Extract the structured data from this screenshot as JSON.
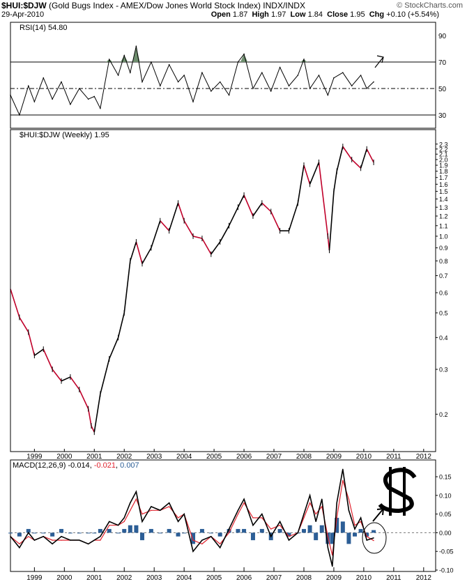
{
  "header": {
    "symbol": "$HUI:$DJW",
    "description": "(Gold Bugs Index - AMEX/Dow Jones World Stock Index) INDX/INDX",
    "date": "29-Apr-2010",
    "watermark": "© StockCharts.com",
    "open_label": "Open",
    "open": "1.87",
    "high_label": "High",
    "high": "1.97",
    "low_label": "Low",
    "low": "1.84",
    "close_label": "Close",
    "close": "1.95",
    "chg_label": "Chg",
    "chg": "+0.10 (+5.54%)"
  },
  "chart_data": [
    {
      "type": "line",
      "title": "RSI(14) 54.80",
      "ylim": [
        20,
        100
      ],
      "yticks": [
        "90",
        "70",
        "50",
        "30"
      ],
      "reference_lines": [
        70,
        50,
        30
      ],
      "x": [
        1998.2,
        1998.5,
        1998.8,
        1999.0,
        1999.3,
        1999.6,
        1999.9,
        2000.2,
        2000.5,
        2000.8,
        2001.0,
        2001.2,
        2001.5,
        2001.8,
        2002.0,
        2002.2,
        2002.4,
        2002.6,
        2002.9,
        2003.2,
        2003.5,
        2003.8,
        2004.0,
        2004.3,
        2004.6,
        2004.9,
        2005.2,
        2005.5,
        2005.8,
        2006.0,
        2006.3,
        2006.6,
        2006.9,
        2007.2,
        2007.5,
        2007.8,
        2008.0,
        2008.2,
        2008.5,
        2008.8,
        2009.0,
        2009.3,
        2009.6,
        2009.9,
        2010.1,
        2010.33
      ],
      "values": [
        45,
        30,
        52,
        40,
        58,
        42,
        55,
        38,
        50,
        42,
        44,
        35,
        72,
        60,
        75,
        62,
        82,
        55,
        70,
        52,
        68,
        55,
        60,
        40,
        62,
        48,
        55,
        45,
        70,
        76,
        50,
        62,
        48,
        66,
        52,
        60,
        72,
        50,
        60,
        45,
        58,
        62,
        52,
        60,
        50,
        55
      ],
      "series_color": "#000000",
      "fill_above_70_color": "#6f8f6f"
    },
    {
      "type": "line",
      "title": "$HUI:$DJW (Weekly) 1.95",
      "log_scale": true,
      "ylim": [
        0.15,
        2.4
      ],
      "yticks": [
        "2.3",
        "2.2",
        "2.1",
        "2.0",
        "1.9",
        "1.8",
        "1.7",
        "1.6",
        "1.5",
        "1.4",
        "1.3",
        "1.2",
        "1.1",
        "1.0",
        "0.9",
        "0.8",
        "0.7",
        "0.6",
        "0.5",
        "0.4",
        "0.3",
        "0.2"
      ],
      "xticks": [
        "1999",
        "2000",
        "2001",
        "2002",
        "2003",
        "2004",
        "2005",
        "2006",
        "2007",
        "2008",
        "2009",
        "2010",
        "2011",
        "2012"
      ],
      "x": [
        1998.2,
        1998.5,
        1998.8,
        1999.0,
        1999.3,
        1999.6,
        1999.9,
        2000.2,
        2000.5,
        2000.8,
        2000.9,
        2001.0,
        2001.2,
        2001.5,
        2001.8,
        2002.0,
        2002.2,
        2002.4,
        2002.6,
        2002.9,
        2003.2,
        2003.5,
        2003.8,
        2004.0,
        2004.3,
        2004.6,
        2004.9,
        2005.2,
        2005.5,
        2005.8,
        2006.0,
        2006.3,
        2006.6,
        2006.9,
        2007.2,
        2007.5,
        2007.8,
        2008.0,
        2008.2,
        2008.5,
        2008.8,
        2008.85,
        2009.0,
        2009.1,
        2009.3,
        2009.6,
        2009.9,
        2010.1,
        2010.33
      ],
      "values": [
        0.62,
        0.48,
        0.42,
        0.34,
        0.36,
        0.3,
        0.27,
        0.28,
        0.25,
        0.21,
        0.18,
        0.17,
        0.24,
        0.33,
        0.4,
        0.5,
        0.8,
        0.95,
        0.78,
        0.9,
        1.15,
        1.05,
        1.35,
        1.15,
        1.0,
        0.98,
        0.85,
        0.95,
        1.1,
        1.3,
        1.45,
        1.2,
        1.35,
        1.25,
        1.05,
        1.05,
        1.35,
        1.9,
        1.6,
        1.95,
        1.0,
        0.88,
        1.5,
        1.8,
        2.25,
        2.0,
        1.85,
        2.2,
        1.95
      ],
      "up_color": "#000000",
      "down_color": "#c0002a"
    },
    {
      "type": "line",
      "title": "MACD(12,26,9)",
      "legend": [
        "-0.014",
        "-0.021",
        "0.007"
      ],
      "ylim": [
        -0.1,
        0.18
      ],
      "yticks": [
        "0.15",
        "0.10",
        "0.05",
        "0.00",
        "-0.05",
        "-0.10"
      ],
      "xticks": [
        "1999",
        "2000",
        "2001",
        "2002",
        "2003",
        "2004",
        "2005",
        "2006",
        "2007",
        "2008",
        "2009",
        "2010",
        "2011",
        "2012"
      ],
      "x": [
        1998.2,
        1998.5,
        1998.8,
        1999.0,
        1999.3,
        1999.6,
        1999.9,
        2000.2,
        2000.5,
        2000.8,
        2001.0,
        2001.2,
        2001.5,
        2001.8,
        2002.0,
        2002.2,
        2002.4,
        2002.6,
        2002.9,
        2003.2,
        2003.5,
        2003.8,
        2004.0,
        2004.3,
        2004.6,
        2004.9,
        2005.2,
        2005.5,
        2005.8,
        2006.0,
        2006.3,
        2006.6,
        2006.9,
        2007.2,
        2007.5,
        2007.8,
        2008.0,
        2008.2,
        2008.4,
        2008.6,
        2008.8,
        2008.95,
        2009.1,
        2009.3,
        2009.5,
        2009.7,
        2009.9,
        2010.1,
        2010.33
      ],
      "series": [
        {
          "name": "-0.014",
          "color": "#000000",
          "values": [
            -0.01,
            -0.04,
            0.0,
            -0.02,
            -0.01,
            -0.03,
            -0.01,
            -0.02,
            -0.02,
            -0.03,
            -0.02,
            -0.01,
            0.03,
            0.02,
            0.04,
            0.08,
            0.11,
            0.03,
            0.07,
            0.06,
            0.08,
            0.03,
            0.05,
            -0.05,
            -0.02,
            -0.01,
            -0.04,
            0.01,
            0.06,
            0.09,
            0.02,
            0.05,
            -0.01,
            0.03,
            -0.02,
            0.0,
            0.05,
            0.1,
            0.03,
            0.09,
            -0.04,
            -0.09,
            0.08,
            0.17,
            0.06,
            0.01,
            0.04,
            -0.02,
            -0.014
          ]
        },
        {
          "name": "-0.021",
          "color": "#e0242f",
          "values": [
            -0.01,
            -0.03,
            -0.01,
            -0.02,
            -0.01,
            -0.02,
            -0.02,
            -0.02,
            -0.02,
            -0.03,
            -0.02,
            -0.02,
            0.02,
            0.02,
            0.03,
            0.06,
            0.09,
            0.05,
            0.06,
            0.06,
            0.07,
            0.04,
            0.05,
            -0.02,
            -0.03,
            -0.01,
            -0.03,
            0.0,
            0.05,
            0.08,
            0.04,
            0.04,
            0.01,
            0.02,
            -0.01,
            0.0,
            0.04,
            0.08,
            0.05,
            0.07,
            -0.01,
            -0.06,
            0.04,
            0.14,
            0.09,
            0.02,
            0.03,
            -0.01,
            -0.021
          ]
        },
        {
          "name": "0.007",
          "color": "#2c5e96",
          "type": "histogram",
          "values": [
            0.0,
            -0.01,
            0.01,
            0.0,
            0.0,
            -0.01,
            0.01,
            0.0,
            0.0,
            0.0,
            0.0,
            0.01,
            0.01,
            0.0,
            0.01,
            0.02,
            0.02,
            -0.02,
            0.01,
            0.0,
            0.01,
            -0.01,
            0.0,
            -0.03,
            0.01,
            0.0,
            -0.01,
            0.01,
            0.01,
            0.01,
            -0.02,
            0.01,
            -0.02,
            0.01,
            -0.01,
            0.0,
            0.01,
            0.02,
            -0.02,
            0.02,
            -0.03,
            -0.03,
            0.04,
            0.03,
            -0.03,
            -0.01,
            0.01,
            -0.01,
            0.007
          ]
        }
      ]
    }
  ]
}
